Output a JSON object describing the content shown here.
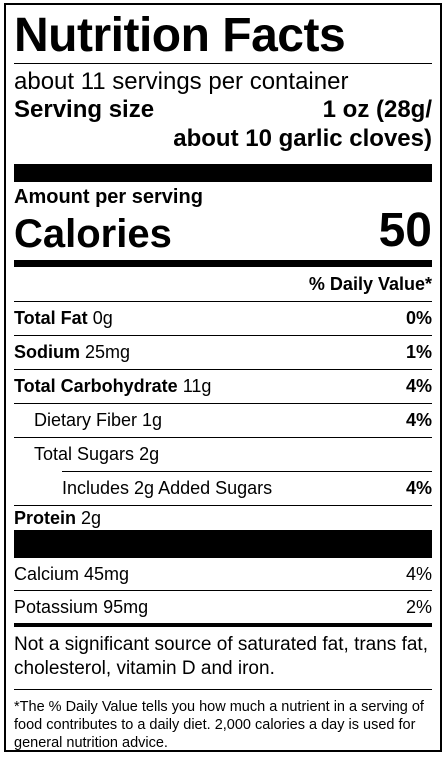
{
  "label": {
    "title": "Nutrition Facts",
    "servings_per_container": "about 11 servings per container",
    "serving_size_label": "Serving size",
    "serving_size_value_line1": "1 oz (28g/",
    "serving_size_value_line2": "about 10 garlic cloves)",
    "amount_per_serving": "Amount per serving",
    "calories_label": "Calories",
    "calories_value": "50",
    "daily_value_header": "% Daily Value*",
    "nutrients": [
      {
        "name": "Total Fat",
        "amount": "0g",
        "dv": "0%"
      },
      {
        "name": "Sodium",
        "amount": "25mg",
        "dv": "1%"
      },
      {
        "name": "Total Carbohydrate",
        "amount": "11g",
        "dv": "4%"
      },
      {
        "name": "Dietary Fiber",
        "amount": "1g",
        "dv": "4%"
      },
      {
        "name": "Total Sugars",
        "amount": "2g",
        "dv": ""
      },
      {
        "name": "Includes 2g Added Sugars",
        "amount": "",
        "dv": "4%"
      }
    ],
    "protein": {
      "name": "Protein",
      "amount": "2g"
    },
    "minerals": [
      {
        "name": "Calcium",
        "amount": "45mg",
        "dv": "4%"
      },
      {
        "name": "Potassium",
        "amount": "95mg",
        "dv": "2%"
      }
    ],
    "not_significant": "Not a significant source of saturated fat, trans fat, cholesterol, vitamin D and iron.",
    "footnote": "*The % Daily Value tells you how much a nutrient in a serving of food contributes to a daily diet. 2,000 calories a day is used for general nutrition advice."
  }
}
